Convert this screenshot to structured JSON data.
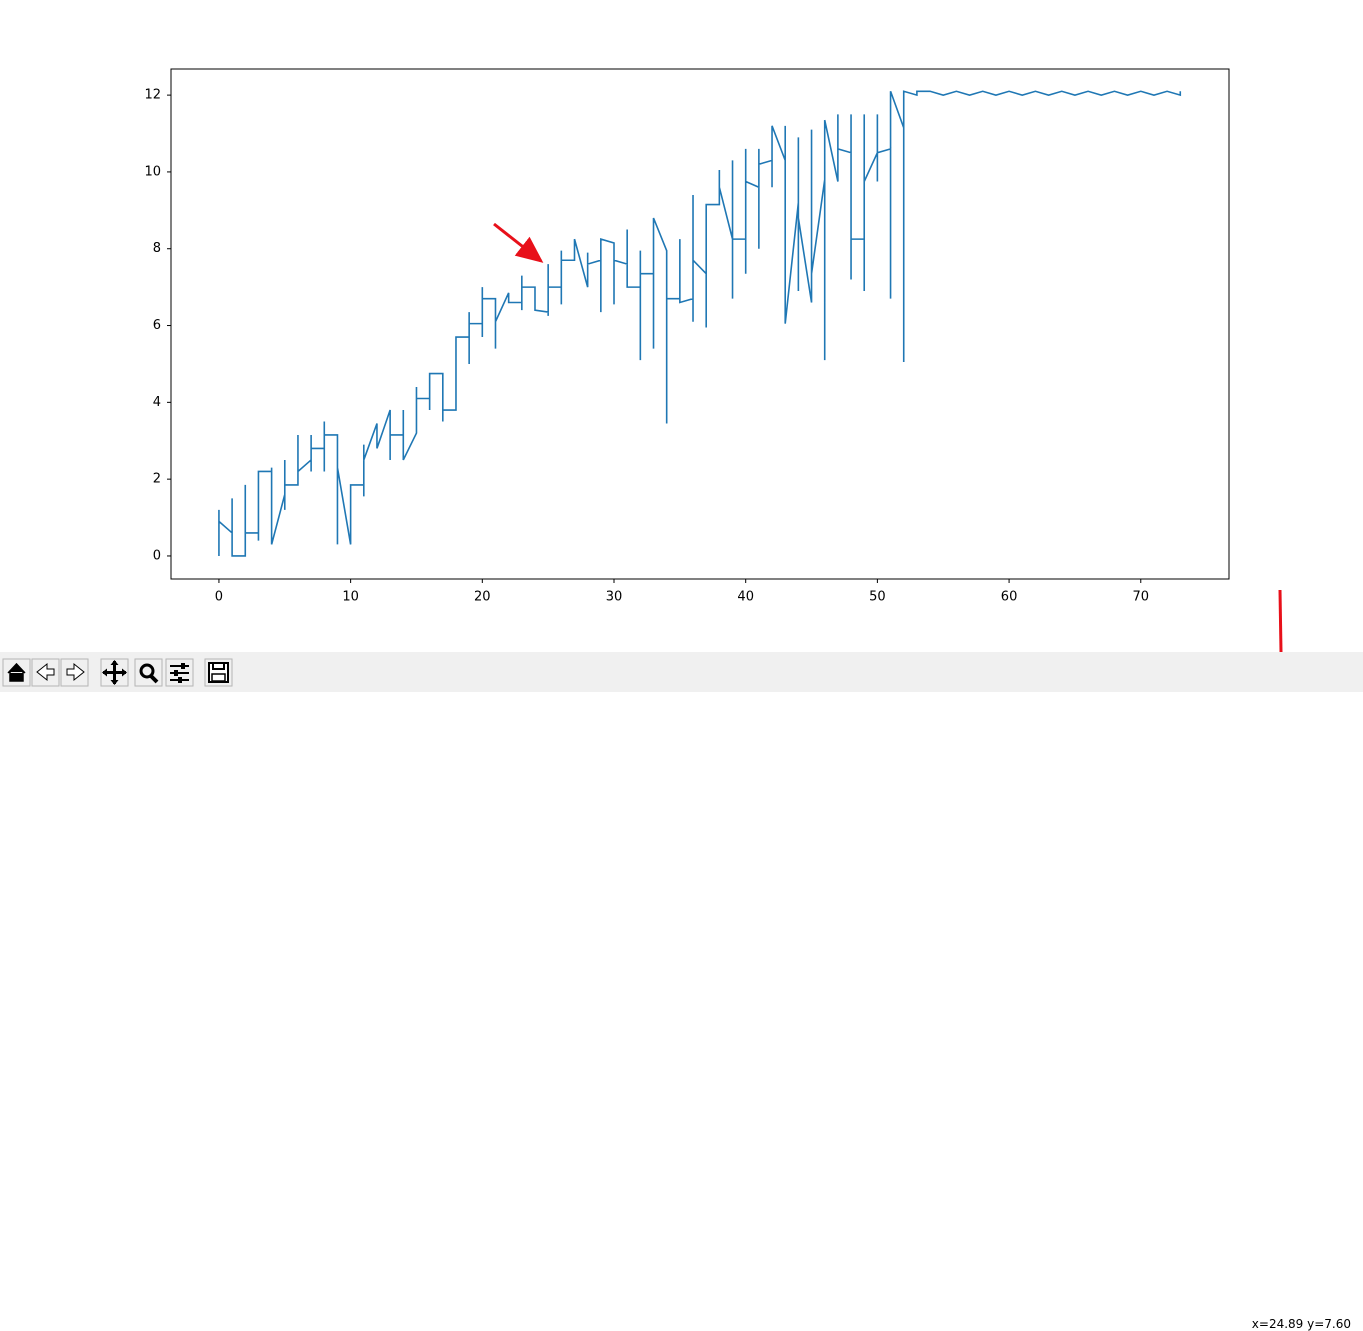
{
  "chart_data": {
    "type": "line",
    "x": [
      0,
      0,
      0,
      1,
      1,
      1,
      2,
      2,
      2,
      3,
      3,
      3,
      4,
      4,
      4,
      5,
      5,
      5,
      5,
      6,
      6,
      6,
      7,
      7,
      7,
      7,
      8,
      8,
      8,
      8,
      9,
      9,
      9,
      10,
      10,
      11,
      11,
      11,
      11,
      12,
      12,
      13,
      13,
      13,
      14,
      14,
      14,
      15,
      15,
      15,
      16,
      16,
      16,
      17,
      17,
      17,
      18,
      18,
      19,
      19,
      19,
      19,
      20,
      20,
      20,
      20,
      21,
      21,
      21,
      22,
      22,
      23,
      23,
      23,
      23,
      24,
      24,
      25,
      25,
      25,
      25,
      26,
      26,
      26,
      26,
      27,
      27,
      28,
      28,
      28,
      29,
      29,
      29,
      30,
      30,
      30,
      31,
      31,
      31,
      32,
      32,
      32,
      32,
      33,
      33,
      33,
      34,
      34,
      34,
      35,
      35,
      35,
      36,
      36,
      36,
      36,
      37,
      37,
      37,
      38,
      38,
      38,
      39,
      39,
      39,
      39,
      40,
      40,
      40,
      40,
      41,
      41,
      41,
      41,
      42,
      42,
      42,
      43,
      43,
      43,
      44,
      44,
      44,
      44,
      45,
      45,
      45,
      46,
      46,
      46,
      47,
      47,
      47,
      48,
      48,
      48,
      48,
      49,
      49,
      49,
      49,
      50,
      50,
      50,
      50,
      51,
      51,
      51,
      52,
      52,
      52,
      53,
      53,
      54,
      55,
      56,
      57,
      58,
      59,
      60,
      61,
      62,
      63,
      64,
      65,
      66,
      67,
      68,
      69,
      70,
      71,
      72,
      73,
      73
    ],
    "series": [
      {
        "color": "#1f77b4",
        "values": [
          0,
          1.2,
          0.9,
          0.6,
          1.5,
          0,
          0,
          1.85,
          0.6,
          0.6,
          0.4,
          2.2,
          2.2,
          2.3,
          0.3,
          1.6,
          2.5,
          1.2,
          1.85,
          1.85,
          3.15,
          2.2,
          2.5,
          3.15,
          2.2,
          2.8,
          2.8,
          3.5,
          2.2,
          3.15,
          3.15,
          0.3,
          2.3,
          0.3,
          1.85,
          1.85,
          1.55,
          2.9,
          2.5,
          3.45,
          2.8,
          3.8,
          2.5,
          3.15,
          3.15,
          3.8,
          2.5,
          3.2,
          4.4,
          4.1,
          4.1,
          3.8,
          4.75,
          4.75,
          3.5,
          3.8,
          3.8,
          5.7,
          5.7,
          6.35,
          5.0,
          6.05,
          6.05,
          7.0,
          5.7,
          6.7,
          6.7,
          5.4,
          6.1,
          6.85,
          6.6,
          6.6,
          7.3,
          6.4,
          7.0,
          7.0,
          6.4,
          6.35,
          7.6,
          6.25,
          7.0,
          7.0,
          7.95,
          6.55,
          7.7,
          7.7,
          8.25,
          7.0,
          7.9,
          7.6,
          7.7,
          6.35,
          8.25,
          8.15,
          6.55,
          7.7,
          7.6,
          8.5,
          7.0,
          7.0,
          7.95,
          5.1,
          7.35,
          7.35,
          5.4,
          8.8,
          7.95,
          3.45,
          6.7,
          6.7,
          8.25,
          6.6,
          6.7,
          9.4,
          6.1,
          7.7,
          7.35,
          5.95,
          9.15,
          9.15,
          10.05,
          9.6,
          8.25,
          10.3,
          6.7,
          8.25,
          8.25,
          10.6,
          7.35,
          9.75,
          9.6,
          10.6,
          8.0,
          10.2,
          10.3,
          9.6,
          11.2,
          10.3,
          11.2,
          6.05,
          9.2,
          10.9,
          6.9,
          8.8,
          6.6,
          11.1,
          7.35,
          9.8,
          5.1,
          11.35,
          9.75,
          11.5,
          10.6,
          10.5,
          11.5,
          7.2,
          8.25,
          8.25,
          11.5,
          6.9,
          9.75,
          10.5,
          11.5,
          9.75,
          10.5,
          10.6,
          6.7,
          12.1,
          11.15,
          5.05,
          12.1,
          12.0,
          12.1,
          12.1,
          12.0,
          12.1,
          12.0,
          12.1,
          12.0,
          12.1,
          12.0,
          12.1,
          12.0,
          12.1,
          12.0,
          12.1,
          12.0,
          12.1,
          12.0,
          12.1,
          12.0,
          12.1,
          12.0,
          12.1
        ]
      }
    ],
    "xlim": [
      -3.64,
      76.7
    ],
    "ylim": [
      -0.6,
      12.68
    ],
    "xticks": [
      0,
      10,
      20,
      30,
      40,
      50,
      60,
      70
    ],
    "yticks": [
      0,
      2,
      4,
      6,
      8,
      10,
      12
    ]
  },
  "status_bar": {
    "coordinates": "x=24.89 y=7.60"
  }
}
